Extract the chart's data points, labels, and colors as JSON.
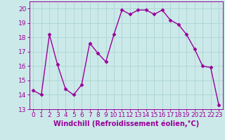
{
  "x": [
    0,
    1,
    2,
    3,
    4,
    5,
    6,
    7,
    8,
    9,
    10,
    11,
    12,
    13,
    14,
    15,
    16,
    17,
    18,
    19,
    20,
    21,
    22,
    23
  ],
  "y": [
    14.3,
    14.0,
    18.2,
    16.1,
    14.4,
    14.0,
    14.7,
    17.6,
    16.9,
    16.3,
    18.2,
    19.9,
    19.6,
    19.9,
    19.9,
    19.6,
    19.9,
    19.2,
    18.9,
    18.2,
    17.2,
    16.0,
    15.9,
    13.3
  ],
  "line_color": "#990099",
  "marker": "D",
  "marker_size": 2.5,
  "xlabel": "Windchill (Refroidissement éolien,°C)",
  "ylabel": "",
  "ylim": [
    13,
    20.5
  ],
  "xlim": [
    -0.5,
    23.5
  ],
  "yticks": [
    13,
    14,
    15,
    16,
    17,
    18,
    19,
    20
  ],
  "xticks": [
    0,
    1,
    2,
    3,
    4,
    5,
    6,
    7,
    8,
    9,
    10,
    11,
    12,
    13,
    14,
    15,
    16,
    17,
    18,
    19,
    20,
    21,
    22,
    23
  ],
  "background_color": "#cce9e9",
  "grid_color": "#aad4d4",
  "font_color": "#990099",
  "font_size": 6.5,
  "xlabel_fontsize": 7.0,
  "linewidth": 1.0
}
